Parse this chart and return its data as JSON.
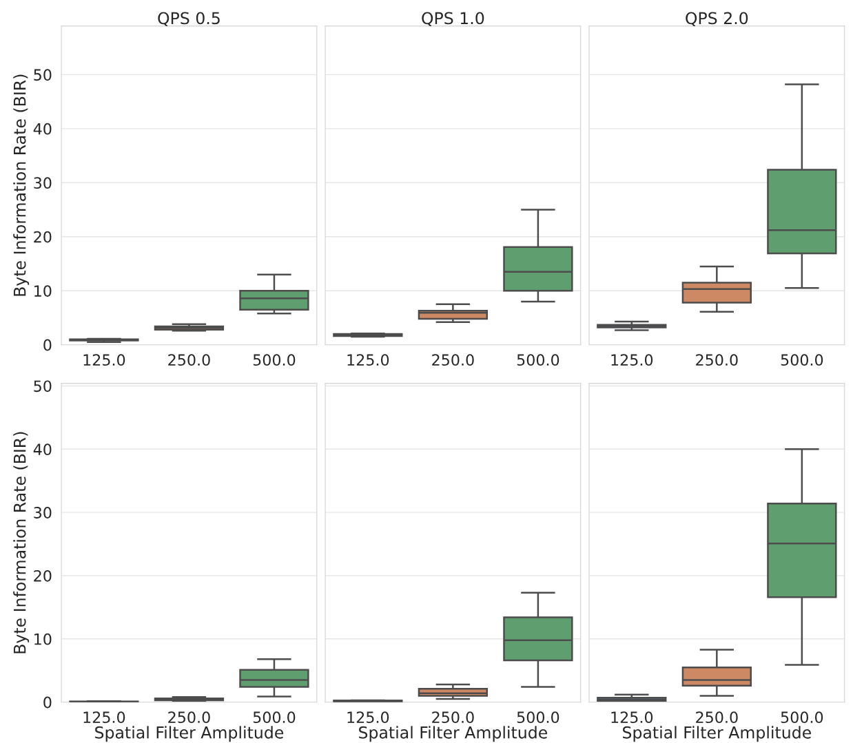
{
  "chart_data": [
    {
      "type": "box",
      "title": "QPS 0.5",
      "ylabel": "Byte Information Rate (BIR)",
      "categories": [
        "125.0",
        "250.0",
        "500.0"
      ],
      "colors": [
        "#5975a4",
        "#cc8963",
        "#5f9e6e"
      ],
      "ylim": [
        0,
        59
      ],
      "yticks": [
        0,
        10,
        20,
        30,
        40,
        50
      ],
      "grid": "y",
      "boxes": [
        {
          "low": 0.5,
          "q1": 0.8,
          "median": 0.9,
          "q3": 1.0,
          "high": 1.1
        },
        {
          "low": 2.6,
          "q1": 2.8,
          "median": 3.1,
          "q3": 3.4,
          "high": 3.8
        },
        {
          "low": 5.8,
          "q1": 6.5,
          "median": 8.6,
          "q3": 10.0,
          "high": 13.0
        }
      ]
    },
    {
      "type": "box",
      "title": "QPS 1.0",
      "categories": [
        "125.0",
        "250.0",
        "500.0"
      ],
      "colors": [
        "#5975a4",
        "#cc8963",
        "#5f9e6e"
      ],
      "ylim": [
        0,
        59
      ],
      "yticks": [
        0,
        10,
        20,
        30,
        40,
        50
      ],
      "grid": "y",
      "tick_labels": "x",
      "boxes": [
        {
          "low": 1.5,
          "q1": 1.6,
          "median": 1.8,
          "q3": 2.0,
          "high": 2.1
        },
        {
          "low": 4.2,
          "q1": 4.8,
          "median": 5.9,
          "q3": 6.3,
          "high": 7.5
        },
        {
          "low": 8.0,
          "q1": 10.0,
          "median": 13.5,
          "q3": 18.1,
          "high": 25.0
        }
      ]
    },
    {
      "type": "box",
      "title": "QPS 2.0",
      "categories": [
        "125.0",
        "250.0",
        "500.0"
      ],
      "colors": [
        "#5975a4",
        "#cc8963",
        "#5f9e6e"
      ],
      "ylim": [
        0,
        59
      ],
      "yticks": [
        0,
        10,
        20,
        30,
        40,
        50
      ],
      "grid": "y",
      "tick_labels": "x",
      "boxes": [
        {
          "low": 2.7,
          "q1": 3.2,
          "median": 3.5,
          "q3": 3.7,
          "high": 4.3
        },
        {
          "low": 6.1,
          "q1": 7.8,
          "median": 10.3,
          "q3": 11.5,
          "high": 14.5
        },
        {
          "low": 10.5,
          "q1": 16.9,
          "median": 21.2,
          "q3": 32.4,
          "high": 48.2
        }
      ]
    },
    {
      "type": "box",
      "xlabel": "Spatial Filter Amplitude",
      "ylabel": "Byte Information Rate (BIR)",
      "categories": [
        "125.0",
        "250.0",
        "500.0"
      ],
      "colors": [
        "#5975a4",
        "#cc8963",
        "#5f9e6e"
      ],
      "ylim": [
        0,
        50.4
      ],
      "yticks": [
        0,
        10,
        20,
        30,
        40,
        50
      ],
      "grid": "y",
      "boxes": [
        {
          "low": 0.0,
          "q1": 0.05,
          "median": 0.08,
          "q3": 0.1,
          "high": 0.15
        },
        {
          "low": 0.15,
          "q1": 0.3,
          "median": 0.4,
          "q3": 0.6,
          "high": 0.8
        },
        {
          "low": 0.9,
          "q1": 2.4,
          "median": 3.5,
          "q3": 5.1,
          "high": 6.8
        }
      ]
    },
    {
      "type": "box",
      "xlabel": "Spatial Filter Amplitude",
      "categories": [
        "125.0",
        "250.0",
        "500.0"
      ],
      "colors": [
        "#5975a4",
        "#cc8963",
        "#5f9e6e"
      ],
      "ylim": [
        0,
        50.4
      ],
      "yticks": [
        0,
        10,
        20,
        30,
        40,
        50
      ],
      "grid": "y",
      "tick_labels": "x",
      "boxes": [
        {
          "low": 0.05,
          "q1": 0.1,
          "median": 0.15,
          "q3": 0.25,
          "high": 0.3
        },
        {
          "low": 0.5,
          "q1": 1.0,
          "median": 1.4,
          "q3": 2.1,
          "high": 2.8
        },
        {
          "low": 2.4,
          "q1": 6.6,
          "median": 9.8,
          "q3": 13.4,
          "high": 17.3
        }
      ]
    },
    {
      "type": "box",
      "xlabel": "Spatial Filter Amplitude",
      "categories": [
        "125.0",
        "250.0",
        "500.0"
      ],
      "colors": [
        "#5975a4",
        "#cc8963",
        "#5f9e6e"
      ],
      "ylim": [
        0,
        50.4
      ],
      "yticks": [
        0,
        10,
        20,
        30,
        40,
        50
      ],
      "grid": "y",
      "tick_labels": "x",
      "boxes": [
        {
          "low": 0.1,
          "q1": 0.2,
          "median": 0.4,
          "q3": 0.7,
          "high": 1.2
        },
        {
          "low": 1.0,
          "q1": 2.6,
          "median": 3.5,
          "q3": 5.5,
          "high": 8.3
        },
        {
          "low": 5.9,
          "q1": 16.6,
          "median": 25.1,
          "q3": 31.4,
          "high": 40.0
        }
      ]
    }
  ]
}
